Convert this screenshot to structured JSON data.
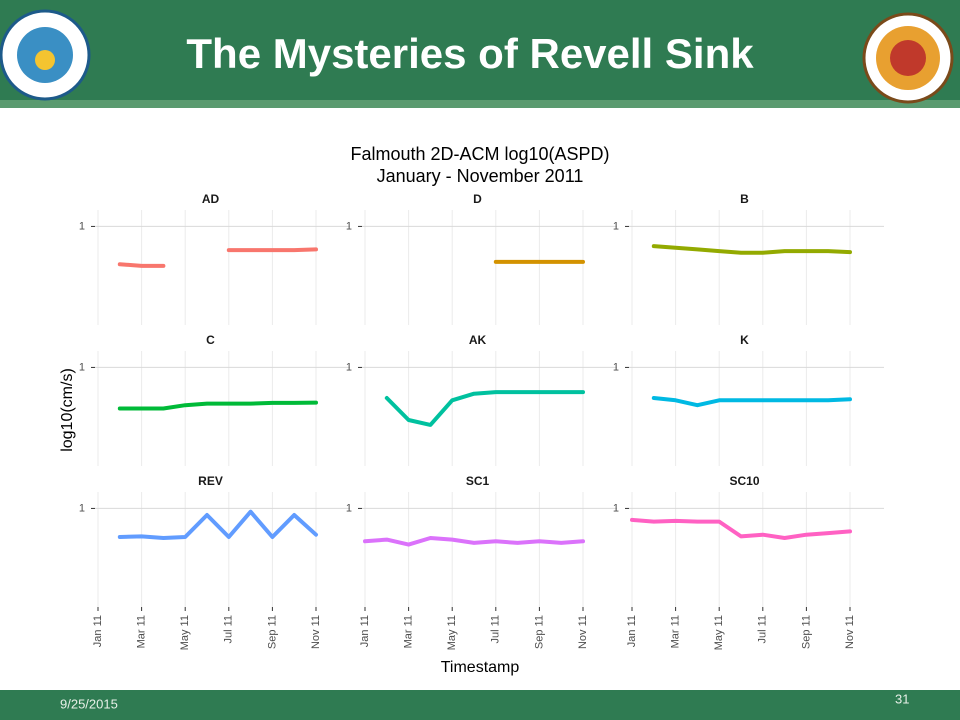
{
  "header": {
    "title": "The Mysteries of Revell Sink"
  },
  "footer": {
    "date": "9/25/2015",
    "page": "31"
  },
  "chart_data": {
    "type": "line",
    "title": "Falmouth 2D-ACM log10(ASPD)",
    "subtitle": "January - November 2011",
    "y_label": "log10(cm/s)",
    "x_label": "Timestamp",
    "x": [
      "2011-01",
      "2011-02",
      "2011-03",
      "2011-04",
      "2011-05",
      "2011-06",
      "2011-07",
      "2011-08",
      "2011-09",
      "2011-10",
      "2011-11"
    ],
    "xlim": [
      "2011-01",
      "2011-11"
    ],
    "xticks": [
      {
        "value": "2011-01",
        "label": "Jan 11"
      },
      {
        "value": "2011-03",
        "label": "Mar 11"
      },
      {
        "value": "2011-05",
        "label": "May 11"
      },
      {
        "value": "2011-07",
        "label": "Jul 11"
      },
      {
        "value": "2011-09",
        "label": "Sep 11"
      },
      {
        "value": "2011-11",
        "label": "Nov 11"
      }
    ],
    "ylim": [
      -2,
      1.5
    ],
    "yticks": [
      1
    ],
    "grid": true,
    "series": [
      {
        "name": "AD",
        "color": "#f8766d",
        "values": [
          null,
          -0.15,
          -0.2,
          -0.2,
          null,
          null,
          0.28,
          0.28,
          0.28,
          0.28,
          0.3
        ]
      },
      {
        "name": "D",
        "color": "#d39200",
        "values": [
          null,
          null,
          null,
          null,
          null,
          null,
          -0.08,
          -0.08,
          -0.08,
          -0.08,
          -0.08
        ]
      },
      {
        "name": "B",
        "color": "#93aa00",
        "values": [
          null,
          0.4,
          0.35,
          0.3,
          0.25,
          0.2,
          0.2,
          0.25,
          0.25,
          0.25,
          0.22
        ]
      },
      {
        "name": "C",
        "color": "#00ba38",
        "values": [
          null,
          -0.25,
          -0.25,
          -0.25,
          -0.15,
          -0.1,
          -0.1,
          -0.1,
          -0.08,
          -0.08,
          -0.07
        ]
      },
      {
        "name": "AK",
        "color": "#00c19f",
        "values": [
          null,
          0.07,
          -0.6,
          -0.75,
          0.0,
          0.2,
          0.25,
          0.25,
          0.25,
          0.25,
          0.25
        ]
      },
      {
        "name": "K",
        "color": "#00b9e3",
        "values": [
          null,
          0.07,
          0.0,
          -0.15,
          0.0,
          0.0,
          0.0,
          0.0,
          0.0,
          0.0,
          0.03
        ]
      },
      {
        "name": "REV",
        "color": "#619cff",
        "values": [
          null,
          0.13,
          0.15,
          0.1,
          0.13,
          0.8,
          0.13,
          0.9,
          0.13,
          0.8,
          0.2
        ]
      },
      {
        "name": "SC1",
        "color": "#db72fb",
        "values": [
          0.0,
          0.05,
          -0.1,
          0.1,
          0.05,
          -0.05,
          0.0,
          -0.05,
          0.0,
          -0.05,
          0.0
        ]
      },
      {
        "name": "SC10",
        "color": "#ff61c3",
        "values": [
          0.65,
          0.6,
          0.62,
          0.6,
          0.6,
          0.15,
          0.2,
          0.1,
          0.2,
          0.25,
          0.3
        ]
      }
    ]
  }
}
